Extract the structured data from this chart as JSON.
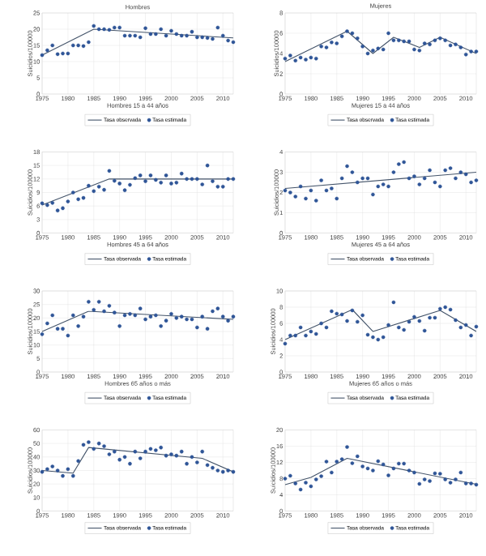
{
  "chart_data": [
    {
      "type": "scatter",
      "title": "Hombres",
      "xlabel": "Hombres 15 a 44 años",
      "ylabel": "Suicidios/100000",
      "xlim": [
        1975,
        2012
      ],
      "xticks": [
        1975,
        1980,
        1985,
        1990,
        1995,
        2000,
        2005,
        2010
      ],
      "ylim": [
        0,
        25
      ],
      "yticks": [
        0,
        5,
        10,
        15,
        20,
        25
      ],
      "grid": true,
      "legend": "bottom",
      "x": [
        1975,
        1976,
        1977,
        1978,
        1979,
        1980,
        1981,
        1982,
        1983,
        1984,
        1985,
        1986,
        1987,
        1988,
        1989,
        1990,
        1991,
        1992,
        1993,
        1994,
        1995,
        1996,
        1997,
        1998,
        1999,
        2000,
        2001,
        2002,
        2003,
        2004,
        2005,
        2006,
        2007,
        2008,
        2009,
        2010,
        2011,
        2012
      ],
      "series": [
        {
          "name": "Tasa observada",
          "type": "line",
          "color": "#44546a",
          "x": [
            1975,
            1985,
            2012
          ],
          "values": [
            12,
            20,
            17.3
          ]
        },
        {
          "name": "Tasa estimada",
          "type": "scatter",
          "color": "#2f5597",
          "marker": "circle",
          "values": [
            12,
            13.5,
            15,
            12.3,
            12.5,
            12.5,
            15,
            15,
            14.8,
            16,
            21,
            20,
            20,
            19.8,
            20.5,
            20.5,
            18,
            18,
            18,
            17.5,
            20.3,
            18.5,
            18.5,
            20,
            18,
            19.5,
            18.5,
            18,
            18,
            19.2,
            17.5,
            17.5,
            17.3,
            17,
            20.5,
            18,
            16.5,
            16
          ]
        }
      ]
    },
    {
      "type": "scatter",
      "title": "Mujeres",
      "xlabel": "Mujeres 15 a 44 años",
      "ylabel": "Suicidios/100000",
      "xlim": [
        1975,
        2012
      ],
      "xticks": [
        1975,
        1980,
        1985,
        1990,
        1995,
        2000,
        2005,
        2010
      ],
      "ylim": [
        0,
        8
      ],
      "yticks": [
        0,
        2,
        4,
        6,
        8
      ],
      "grid": true,
      "legend": "bottom",
      "x": [
        1975,
        1976,
        1977,
        1978,
        1979,
        1980,
        1981,
        1982,
        1983,
        1984,
        1985,
        1986,
        1987,
        1988,
        1989,
        1990,
        1991,
        1992,
        1993,
        1994,
        1995,
        1996,
        1997,
        1998,
        1999,
        2000,
        2001,
        2002,
        2003,
        2004,
        2005,
        2006,
        2007,
        2008,
        2009,
        2010,
        2011,
        2012
      ],
      "series": [
        {
          "name": "Tasa observada",
          "type": "line",
          "color": "#44546a",
          "x": [
            1975,
            1987,
            1992,
            1996,
            2001,
            2005,
            2012
          ],
          "values": [
            3.2,
            6.2,
            4.0,
            5.6,
            4.6,
            5.6,
            4.0
          ]
        },
        {
          "name": "Tasa estimada",
          "type": "scatter",
          "color": "#2f5597",
          "marker": "circle",
          "values": [
            3.5,
            3.8,
            3.3,
            3.6,
            3.4,
            3.6,
            3.5,
            4.7,
            4.6,
            5.1,
            5.0,
            5.7,
            6.2,
            6.0,
            5.5,
            4.7,
            4.0,
            4.3,
            4.5,
            4.4,
            6.0,
            5.3,
            5.3,
            5.2,
            5.2,
            4.4,
            4.3,
            5.0,
            4.9,
            5.3,
            5.5,
            5.3,
            4.8,
            4.9,
            4.6,
            3.9,
            4.2,
            4.2
          ]
        }
      ]
    },
    {
      "type": "scatter",
      "xlabel": "Hombres 45 a 64 años",
      "ylabel": "Suicidios/100000",
      "xlim": [
        1975,
        2012
      ],
      "xticks": [
        1975,
        1980,
        1985,
        1990,
        1995,
        2000,
        2005,
        2010
      ],
      "ylim": [
        0,
        18
      ],
      "yticks": [
        0,
        3,
        6,
        9,
        12,
        15,
        18
      ],
      "grid": true,
      "legend": "bottom",
      "x": [
        1975,
        1976,
        1977,
        1978,
        1979,
        1980,
        1981,
        1982,
        1983,
        1984,
        1985,
        1986,
        1987,
        1988,
        1989,
        1990,
        1991,
        1992,
        1993,
        1994,
        1995,
        1996,
        1997,
        1998,
        1999,
        2000,
        2001,
        2002,
        2003,
        2004,
        2005,
        2006,
        2007,
        2008,
        2009,
        2010,
        2011,
        2012
      ],
      "series": [
        {
          "name": "Tasa observada",
          "type": "line",
          "color": "#44546a",
          "x": [
            1975,
            1988,
            2012
          ],
          "values": [
            6.2,
            12,
            12
          ]
        },
        {
          "name": "Tasa estimada",
          "type": "scatter",
          "color": "#2f5597",
          "marker": "circle",
          "values": [
            6.6,
            6.2,
            6.7,
            5,
            5.5,
            7,
            9,
            7.5,
            7.8,
            10.5,
            9.3,
            10.3,
            9.6,
            13.8,
            11.6,
            11,
            9.5,
            10.7,
            12.2,
            12.8,
            11.5,
            12.8,
            11.8,
            11.2,
            12.8,
            11,
            11.2,
            13.2,
            12,
            12,
            12,
            10.8,
            15,
            11.5,
            10.3,
            10.3,
            12,
            12
          ]
        }
      ]
    },
    {
      "type": "scatter",
      "xlabel": "Mujeres 45 a 64 años",
      "ylabel": "Suicidios/100000",
      "xlim": [
        1975,
        2012
      ],
      "xticks": [
        1975,
        1980,
        1985,
        1990,
        1995,
        2000,
        2005,
        2010
      ],
      "ylim": [
        0,
        4
      ],
      "yticks": [
        0,
        1,
        2,
        3,
        4
      ],
      "grid": true,
      "legend": "bottom",
      "x": [
        1975,
        1976,
        1977,
        1978,
        1979,
        1980,
        1981,
        1982,
        1983,
        1984,
        1985,
        1986,
        1987,
        1988,
        1989,
        1990,
        1991,
        1992,
        1993,
        1994,
        1995,
        1996,
        1997,
        1998,
        1999,
        2000,
        2001,
        2002,
        2003,
        2004,
        2005,
        2006,
        2007,
        2008,
        2009,
        2010,
        2011,
        2012
      ],
      "series": [
        {
          "name": "Tasa observada",
          "type": "line",
          "color": "#44546a",
          "x": [
            1975,
            2012
          ],
          "values": [
            2.2,
            3.0
          ]
        },
        {
          "name": "Tasa estimada",
          "type": "scatter",
          "color": "#2f5597",
          "marker": "circle",
          "values": [
            2.1,
            2.0,
            1.8,
            2.3,
            1.7,
            2.1,
            1.6,
            2.6,
            2.1,
            2.2,
            1.7,
            2.7,
            3.3,
            3.0,
            2.5,
            2.7,
            2.7,
            1.9,
            2.3,
            2.4,
            2.3,
            3.0,
            3.4,
            3.5,
            2.7,
            2.8,
            2.4,
            2.7,
            3.1,
            2.5,
            2.3,
            3.1,
            3.2,
            2.7,
            3.0,
            2.9,
            2.5,
            2.6
          ]
        }
      ]
    },
    {
      "type": "scatter",
      "xlabel": "Hombres 65 años o más",
      "ylabel": "Suicidios/100000",
      "xlim": [
        1975,
        2012
      ],
      "xticks": [
        1975,
        1980,
        1985,
        1990,
        1995,
        2000,
        2005,
        2010
      ],
      "ylim": [
        0,
        30
      ],
      "yticks": [
        0,
        5,
        10,
        15,
        20,
        25,
        30
      ],
      "grid": true,
      "legend": "bottom",
      "x": [
        1975,
        1976,
        1977,
        1978,
        1979,
        1980,
        1981,
        1982,
        1983,
        1984,
        1985,
        1986,
        1987,
        1988,
        1989,
        1990,
        1991,
        1992,
        1993,
        1994,
        1995,
        1996,
        1997,
        1998,
        1999,
        2000,
        2001,
        2002,
        2003,
        2004,
        2005,
        2006,
        2007,
        2008,
        2009,
        2010,
        2011,
        2012
      ],
      "series": [
        {
          "name": "Tasa observada",
          "type": "line",
          "color": "#44546a",
          "x": [
            1975,
            1984,
            2012
          ],
          "values": [
            15,
            22.5,
            19.5
          ]
        },
        {
          "name": "Tasa estimada",
          "type": "scatter",
          "color": "#2f5597",
          "marker": "circle",
          "values": [
            14,
            18,
            21,
            16,
            16,
            13.5,
            21,
            17,
            20.5,
            26,
            23,
            26,
            22.5,
            24.5,
            22,
            17,
            21,
            21.5,
            21,
            23.5,
            19.5,
            20.5,
            21,
            17,
            19,
            21.5,
            20,
            20.5,
            19.5,
            19.5,
            16.5,
            20.5,
            16,
            22.5,
            23.5,
            20.5,
            19,
            20.5
          ]
        }
      ]
    },
    {
      "type": "scatter",
      "xlabel": "Mujeres 65 años o más",
      "ylabel": "Suicidios/100000",
      "xlim": [
        1975,
        2012
      ],
      "xticks": [
        1975,
        1980,
        1985,
        1990,
        1995,
        2000,
        2005,
        2010
      ],
      "ylim": [
        0,
        10
      ],
      "yticks": [
        0,
        2,
        4,
        6,
        8,
        10
      ],
      "grid": true,
      "legend": "bottom",
      "x": [
        1975,
        1976,
        1977,
        1978,
        1979,
        1980,
        1981,
        1982,
        1983,
        1984,
        1985,
        1986,
        1987,
        1988,
        1989,
        1990,
        1991,
        1992,
        1993,
        1994,
        1995,
        1996,
        1997,
        1998,
        1999,
        2000,
        2001,
        2002,
        2003,
        2004,
        2005,
        2006,
        2007,
        2008,
        2009,
        2010,
        2011,
        2012
      ],
      "series": [
        {
          "name": "Tasa observada",
          "type": "line",
          "color": "#44546a",
          "x": [
            1975,
            1988,
            1992,
            2005,
            2012
          ],
          "values": [
            4.0,
            7.7,
            5.0,
            7.6,
            5.0
          ]
        },
        {
          "name": "Tasa estimada",
          "type": "scatter",
          "color": "#2f5597",
          "marker": "circle",
          "values": [
            3.5,
            4.5,
            4.5,
            5.5,
            4.5,
            5,
            4.7,
            6,
            5.5,
            7.5,
            7.2,
            7.1,
            6.3,
            7.6,
            6.2,
            7,
            4.6,
            4.3,
            4,
            4.3,
            5.8,
            8.6,
            5.5,
            5.2,
            6.2,
            6.8,
            6.3,
            5.1,
            6.7,
            6.7,
            7.8,
            8,
            7.7,
            6.4,
            5.5,
            5.8,
            4.5,
            5.6
          ]
        }
      ]
    },
    {
      "type": "scatter",
      "ylabel": "Suicidios/100000",
      "xlim": [
        1975,
        2012
      ],
      "xticks": [
        1975,
        1980,
        1985,
        1990,
        1995,
        2000,
        2005,
        2010
      ],
      "ylim": [
        0,
        60
      ],
      "yticks": [
        0,
        10,
        20,
        30,
        40,
        50,
        60
      ],
      "grid": true,
      "legend": "bottom",
      "x": [
        1975,
        1976,
        1977,
        1978,
        1979,
        1980,
        1981,
        1982,
        1983,
        1984,
        1985,
        1986,
        1987,
        1988,
        1989,
        1990,
        1991,
        1992,
        1993,
        1994,
        1995,
        1996,
        1997,
        1998,
        1999,
        2000,
        2001,
        2002,
        2003,
        2004,
        2005,
        2006,
        2007,
        2008,
        2009,
        2010,
        2011,
        2012
      ],
      "series": [
        {
          "name": "Tasa observada",
          "type": "line",
          "color": "#44546a",
          "x": [
            1975,
            1981,
            1984,
            2006,
            2012
          ],
          "values": [
            30,
            28,
            47,
            39,
            29
          ]
        },
        {
          "name": "Tasa estimada",
          "type": "scatter",
          "color": "#2f5597",
          "marker": "circle",
          "values": [
            29,
            31,
            33,
            30,
            26,
            31,
            26,
            37,
            49,
            51,
            46,
            50,
            48,
            42,
            44,
            38,
            40,
            35,
            44,
            39,
            44,
            46,
            45,
            47,
            41,
            42,
            41,
            44,
            35,
            40,
            36,
            44,
            34,
            32,
            30,
            29,
            30,
            29
          ]
        }
      ]
    },
    {
      "type": "scatter",
      "ylabel": "Suicidios/100000",
      "xlim": [
        1975,
        2012
      ],
      "xticks": [
        1975,
        1980,
        1985,
        1990,
        1995,
        2000,
        2005,
        2010
      ],
      "ylim": [
        0,
        20
      ],
      "yticks": [
        0,
        4,
        8,
        12,
        16,
        20
      ],
      "grid": true,
      "legend": "bottom",
      "x": [
        1975,
        1976,
        1977,
        1978,
        1979,
        1980,
        1981,
        1982,
        1983,
        1984,
        1985,
        1986,
        1987,
        1988,
        1989,
        1990,
        1991,
        1992,
        1993,
        1994,
        1995,
        1996,
        1997,
        1998,
        1999,
        2000,
        2001,
        2002,
        2003,
        2004,
        2005,
        2006,
        2007,
        2008,
        2009,
        2010,
        2011,
        2012
      ],
      "series": [
        {
          "name": "Tasa observada",
          "type": "line",
          "color": "#44546a",
          "x": [
            1975,
            1980,
            1987,
            2012
          ],
          "values": [
            6.5,
            8.3,
            13,
            6.6
          ]
        },
        {
          "name": "Tasa estimada",
          "type": "scatter",
          "color": "#2f5597",
          "marker": "circle",
          "values": [
            8,
            8.7,
            6.8,
            5.3,
            7,
            6.1,
            7.8,
            8.6,
            12.2,
            9.5,
            12.2,
            12.8,
            15.8,
            11.8,
            13.5,
            11,
            10.5,
            10,
            12.3,
            11.5,
            8.8,
            10.5,
            11.7,
            11.7,
            10,
            9.5,
            6.7,
            7.8,
            7.4,
            9.3,
            9.2,
            7.8,
            7,
            7.8,
            9.5,
            6.8,
            6.8,
            6.5
          ]
        }
      ]
    }
  ]
}
